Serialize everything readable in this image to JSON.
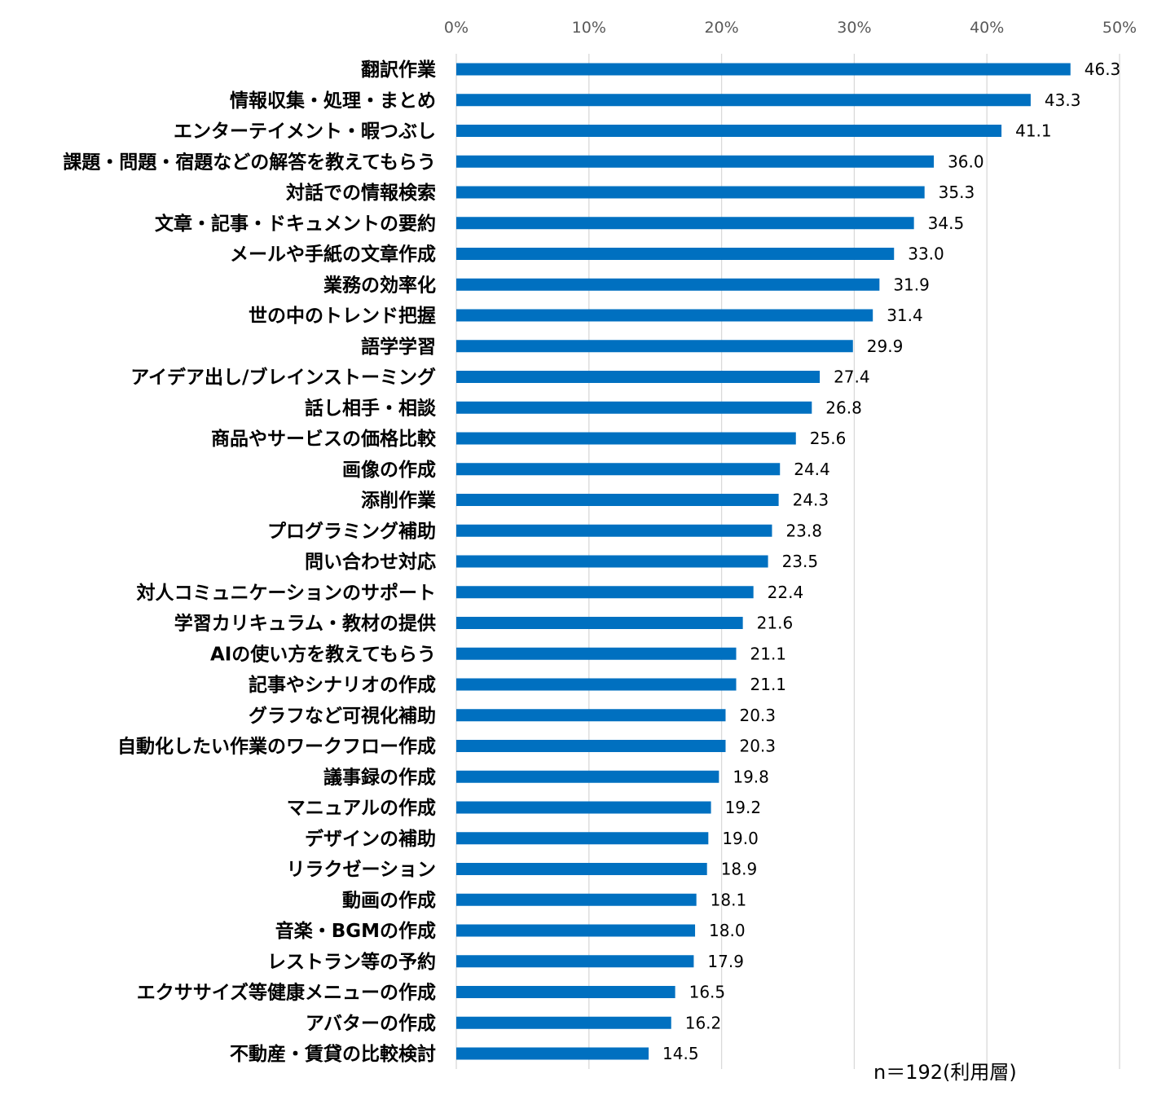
{
  "chart_data": {
    "type": "bar",
    "orientation": "horizontal",
    "categories": [
      "翻訳作業",
      "情報収集・処理・まとめ",
      "エンターテイメント・暇つぶし",
      "課題・問題・宿題などの解答を教えてもらう",
      "対話での情報検索",
      "文章・記事・ドキュメントの要約",
      "メールや手紙の文章作成",
      "業務の効率化",
      "世の中のトレンド把握",
      "語学学習",
      "アイデア出し/ブレインストーミング",
      "話し相手・相談",
      "商品やサービスの価格比較",
      "画像の作成",
      "添削作業",
      "プログラミング補助",
      "問い合わせ対応",
      "対人コミュニケーションのサポート",
      "学習カリキュラム・教材の提供",
      "AIの使い方を教えてもらう",
      "記事やシナリオの作成",
      "グラフなど可視化補助",
      "自動化したい作業のワークフロー作成",
      "議事録の作成",
      "マニュアルの作成",
      "デザインの補助",
      "リラクゼーション",
      "動画の作成",
      "音楽・BGMの作成",
      "レストラン等の予約",
      "エクササイズ等健康メニューの作成",
      "アバターの作成",
      "不動産・賃貸の比較検討"
    ],
    "values": [
      46.3,
      43.3,
      41.1,
      36.0,
      35.3,
      34.5,
      33.0,
      31.9,
      31.4,
      29.9,
      27.4,
      26.8,
      25.6,
      24.4,
      24.3,
      23.8,
      23.5,
      22.4,
      21.6,
      21.1,
      21.1,
      20.3,
      20.3,
      19.8,
      19.2,
      19.0,
      18.9,
      18.1,
      18.0,
      17.9,
      16.5,
      16.2,
      14.5
    ],
    "value_labels": [
      "46.3",
      "43.3",
      "41.1",
      "36.0",
      "35.3",
      "34.5",
      "33.0",
      "31.9",
      "31.4",
      "29.9",
      "27.4",
      "26.8",
      "25.6",
      "24.4",
      "24.3",
      "23.8",
      "23.5",
      "22.4",
      "21.6",
      "21.1",
      "21.1",
      "20.3",
      "20.3",
      "19.8",
      "19.2",
      "19.0",
      "18.9",
      "18.1",
      "18.0",
      "17.9",
      "16.5",
      "16.2",
      "14.5"
    ],
    "xlim": [
      0,
      50
    ],
    "x_ticks": [
      0,
      10,
      20,
      30,
      40,
      50
    ],
    "x_tick_labels": [
      "0%",
      "10%",
      "20%",
      "30%",
      "40%",
      "50%"
    ],
    "x_axis_position": "top",
    "grid": true,
    "bar_color": "#0070C0",
    "grid_color": "#D9D9D9",
    "note": "n＝192(利用層)"
  }
}
